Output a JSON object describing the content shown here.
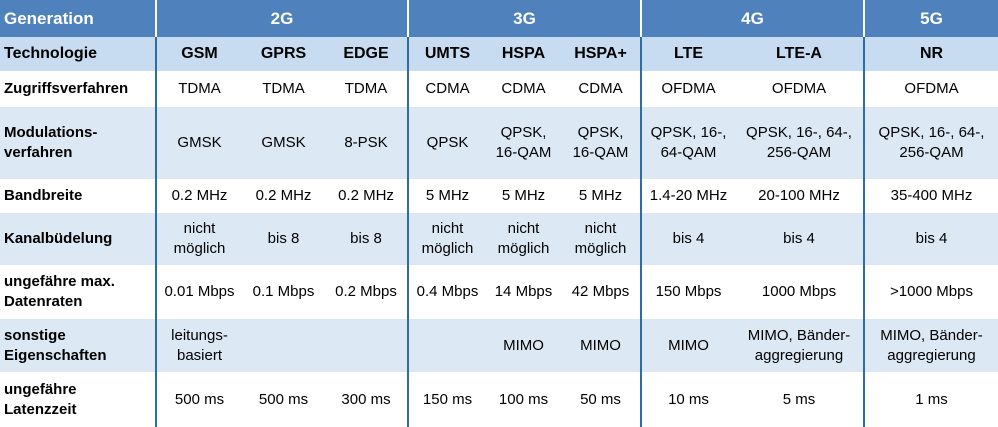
{
  "header": {
    "label": "Generation",
    "generations": [
      "2G",
      "3G",
      "4G",
      "5G"
    ]
  },
  "technology": {
    "label": "Technologie",
    "values": [
      "GSM",
      "GPRS",
      "EDGE",
      "UMTS",
      "HSPA",
      "HSPA+",
      "LTE",
      "LTE-A",
      "NR"
    ]
  },
  "rows": [
    {
      "label": [
        "Zugriffsverfahren"
      ],
      "cells": [
        [
          "TDMA"
        ],
        [
          "TDMA"
        ],
        [
          "TDMA"
        ],
        [
          "CDMA"
        ],
        [
          "CDMA"
        ],
        [
          "CDMA"
        ],
        [
          "OFDMA"
        ],
        [
          "OFDMA"
        ],
        [
          "OFDMA"
        ]
      ]
    },
    {
      "label": [
        "Modulations-",
        "verfahren"
      ],
      "cells": [
        [
          "GMSK"
        ],
        [
          "GMSK"
        ],
        [
          "8-PSK"
        ],
        [
          "QPSK"
        ],
        [
          "QPSK,",
          "16-QAM"
        ],
        [
          "QPSK,",
          "16-QAM"
        ],
        [
          "QPSK, 16-,",
          "64-QAM"
        ],
        [
          "QPSK, 16-, 64-,",
          "256-QAM"
        ],
        [
          "QPSK, 16-, 64-,",
          "256-QAM"
        ]
      ]
    },
    {
      "label": [
        "Bandbreite"
      ],
      "cells": [
        [
          "0.2 MHz"
        ],
        [
          "0.2 MHz"
        ],
        [
          "0.2 MHz"
        ],
        [
          "5 MHz"
        ],
        [
          "5 MHz"
        ],
        [
          "5 MHz"
        ],
        [
          "1.4-20 MHz"
        ],
        [
          "20-100 MHz"
        ],
        [
          "35-400 MHz"
        ]
      ]
    },
    {
      "label": [
        "Kanalbüdelung"
      ],
      "cells": [
        [
          "nicht",
          "möglich"
        ],
        [
          "bis 8"
        ],
        [
          "bis 8"
        ],
        [
          "nicht",
          "möglich"
        ],
        [
          "nicht",
          "möglich"
        ],
        [
          "nicht",
          "möglich"
        ],
        [
          "bis 4"
        ],
        [
          "bis 4"
        ],
        [
          "bis 4"
        ]
      ]
    },
    {
      "label": [
        "ungefähre max.",
        "Datenraten"
      ],
      "cells": [
        [
          "0.01 Mbps"
        ],
        [
          "0.1 Mbps"
        ],
        [
          "0.2 Mbps"
        ],
        [
          "0.4 Mbps"
        ],
        [
          "14 Mbps"
        ],
        [
          "42 Mbps"
        ],
        [
          "150 Mbps"
        ],
        [
          "1000 Mbps"
        ],
        [
          ">1000 Mbps"
        ]
      ]
    },
    {
      "label": [
        "sonstige",
        "Eigenschaften"
      ],
      "cells": [
        [
          "leitungs-",
          "basiert"
        ],
        [],
        [],
        [],
        [
          "MIMO"
        ],
        [
          "MIMO"
        ],
        [
          "MIMO"
        ],
        [
          "MIMO, Bänder-",
          "aggregierung"
        ],
        [
          "MIMO, Bänder-",
          "aggregierung"
        ]
      ]
    },
    {
      "label": [
        "ungefähre",
        "Latenzzeit"
      ],
      "cells": [
        [
          "500 ms"
        ],
        [
          "500 ms"
        ],
        [
          "300 ms"
        ],
        [
          "150 ms"
        ],
        [
          "100 ms"
        ],
        [
          "50 ms"
        ],
        [
          "10 ms"
        ],
        [
          "5 ms"
        ],
        [
          "1 ms"
        ]
      ]
    }
  ],
  "colors": {
    "header_bg": "#4F81BD",
    "technology_bg": "#C7DCF0",
    "band_bg": "#DCE8F4",
    "divider": "#2E6DA4"
  }
}
